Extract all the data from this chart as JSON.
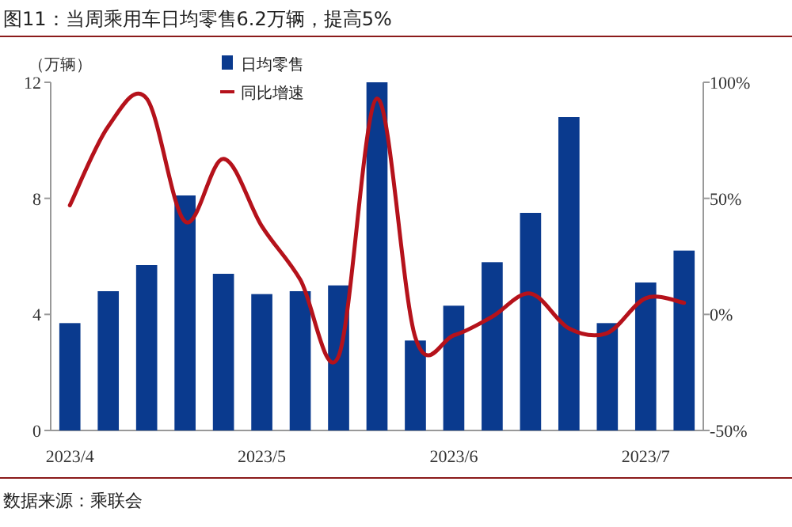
{
  "chart_data": {
    "type": "bar",
    "title": "图11：当周乘用车日均零售6.2万辆，提高5%",
    "ylabel": "（万辆）",
    "categories": [
      "2023/4",
      null,
      null,
      null,
      null,
      "2023/5",
      null,
      null,
      null,
      null,
      "2023/6",
      null,
      null,
      null,
      null,
      "2023/7",
      null
    ],
    "series": [
      {
        "name": "日均零售",
        "color": "#0a3a8e",
        "values": [
          3.7,
          4.8,
          5.7,
          8.1,
          5.4,
          4.7,
          4.8,
          5.0,
          12.0,
          3.1,
          4.3,
          5.8,
          7.5,
          10.8,
          3.7,
          5.1,
          6.2
        ]
      },
      {
        "name": "同比增速",
        "type": "line",
        "axis": "y2",
        "color": "#b5121b",
        "values": [
          47,
          81,
          93,
          40,
          67,
          38,
          15,
          -18,
          93,
          -10,
          -9,
          -1,
          9,
          -6,
          -8,
          7,
          5
        ]
      }
    ],
    "ylim": [
      0,
      12
    ],
    "yticks": [
      0,
      4,
      8,
      12
    ],
    "y2lim": [
      -50,
      100
    ],
    "y2ticks": [
      {
        "value": -50,
        "label": "-50%"
      },
      {
        "value": 0,
        "label": "0%"
      },
      {
        "value": 50,
        "label": "50%"
      },
      {
        "value": 100,
        "label": "100%"
      }
    ],
    "legend": "top",
    "grid": false,
    "annotations": [
      "数据来源：乘联会"
    ]
  }
}
